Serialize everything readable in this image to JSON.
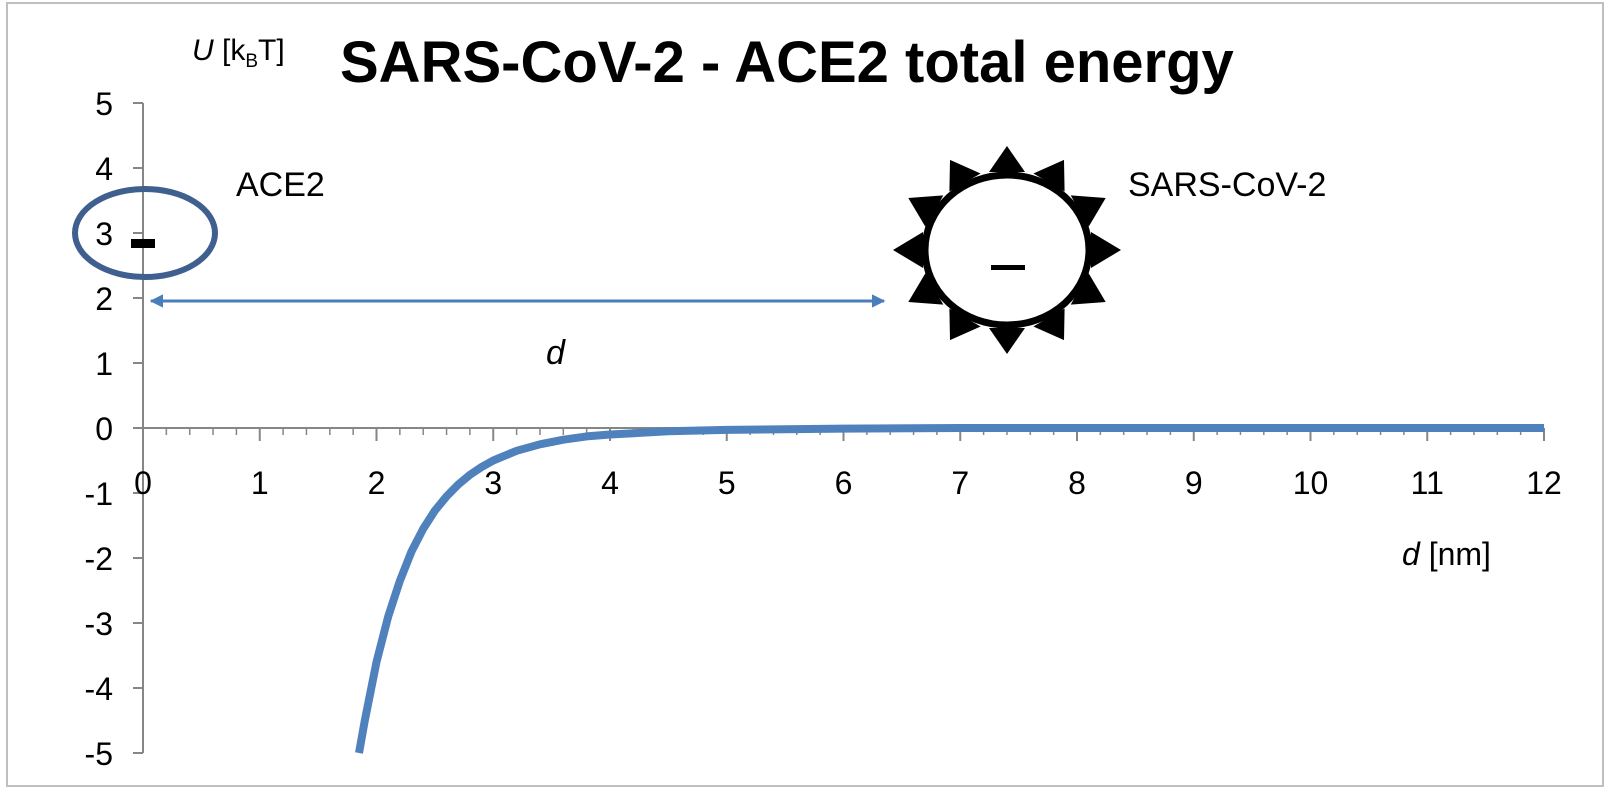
{
  "chart_data": {
    "type": "line",
    "title": "SARS-CoV-2 - ACE2 total energy",
    "ylabel": {
      "symbol": "U",
      "unit_open": " [k",
      "unit_sub": "B",
      "unit_close": "T]"
    },
    "xlabel": {
      "symbol": "d",
      "unit": " [nm]"
    },
    "xlim": [
      0,
      12
    ],
    "ylim": [
      -5,
      5
    ],
    "x_ticks": [
      "0",
      "1",
      "2",
      "3",
      "4",
      "5",
      "6",
      "7",
      "8",
      "9",
      "10",
      "11",
      "12"
    ],
    "y_ticks": [
      "5",
      "4",
      "3",
      "2",
      "1",
      "0",
      "-1",
      "-2",
      "-3",
      "-4",
      "-5"
    ],
    "grid": false,
    "series": [
      {
        "color": "#4f81bd",
        "x": [
          1.85,
          1.9,
          2.0,
          2.1,
          2.2,
          2.3,
          2.4,
          2.5,
          2.6,
          2.7,
          2.8,
          2.9,
          3.0,
          3.2,
          3.4,
          3.6,
          3.8,
          4.0,
          4.5,
          5.0,
          6.0,
          7.0,
          8.0,
          9.0,
          10.0,
          11.0,
          12.0
        ],
        "y": [
          -5.0,
          -4.5,
          -3.6,
          -2.9,
          -2.35,
          -1.9,
          -1.55,
          -1.27,
          -1.05,
          -0.87,
          -0.72,
          -0.6,
          -0.5,
          -0.35,
          -0.25,
          -0.18,
          -0.13,
          -0.1,
          -0.05,
          -0.03,
          -0.01,
          0.0,
          0.0,
          0.0,
          0.0,
          0.0,
          0.0
        ]
      }
    ],
    "annotations": {
      "ace2_label": "ACE2",
      "ace2_charge": "-",
      "virus_label": "SARS-CoV-2",
      "virus_charge": "–",
      "distance_label": "d"
    },
    "colors": {
      "curve": "#4f81bd",
      "ace2_ellipse": "#3f5f8f",
      "arrow": "#4a7ebb",
      "axis": "#868686"
    }
  }
}
